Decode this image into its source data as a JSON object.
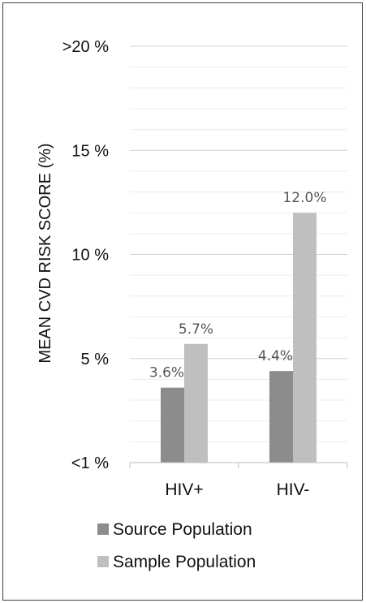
{
  "chart_data": {
    "type": "bar",
    "ylabel": "MEAN CVD RISK SCORE (%)",
    "y_tick_labels": [
      "<1 %",
      "5 %",
      "10 %",
      "15 %",
      ">20 %"
    ],
    "y_tick_values": [
      0,
      5,
      10,
      15,
      20
    ],
    "ylim": [
      0,
      20
    ],
    "categories": [
      "HIV+",
      "HIV-"
    ],
    "series": [
      {
        "name": "Source Population",
        "values": [
          3.6,
          4.4
        ],
        "labels": [
          "3.6%",
          "4.4%"
        ],
        "color": "#8c8c8c"
      },
      {
        "name": "Sample Population",
        "values": [
          5.7,
          12.0
        ],
        "labels": [
          "5.7%",
          "12.0%"
        ],
        "color": "#bfbfbf"
      }
    ],
    "grid": true,
    "legend_position": "bottom"
  }
}
